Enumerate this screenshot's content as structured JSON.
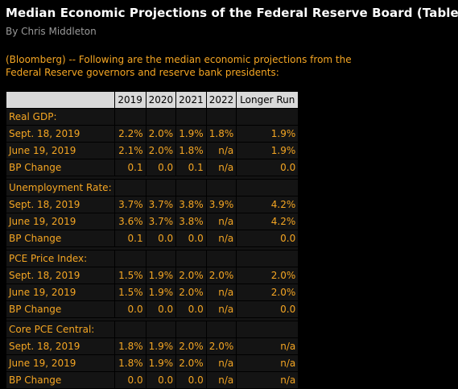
{
  "article": {
    "title": "Median Economic Projections of the Federal Reserve Board (Table)",
    "byline": "By Chris Middleton",
    "intro": "(Bloomberg) --  Following are the median economic projections from the Federal Reserve governors and reserve bank presidents:"
  },
  "table": {
    "columns": [
      "2019",
      "2020",
      "2021",
      "2022",
      "Longer Run"
    ],
    "sections": [
      {
        "label": "Real GDP:",
        "rows": [
          {
            "label": "Sept. 18, 2019",
            "values": [
              "2.2%",
              "2.0%",
              "1.9%",
              "1.8%",
              "1.9%"
            ]
          },
          {
            "label": "June 19, 2019",
            "values": [
              "2.1%",
              "2.0%",
              "1.8%",
              "n/a",
              "1.9%"
            ]
          },
          {
            "label": "BP Change",
            "values": [
              "0.1",
              "0.0",
              "0.1",
              "n/a",
              "0.0"
            ]
          }
        ]
      },
      {
        "label": "Unemployment Rate:",
        "rows": [
          {
            "label": "Sept. 18, 2019",
            "values": [
              "3.7%",
              "3.7%",
              "3.8%",
              "3.9%",
              "4.2%"
            ]
          },
          {
            "label": "June 19, 2019",
            "values": [
              "3.6%",
              "3.7%",
              "3.8%",
              "n/a",
              "4.2%"
            ]
          },
          {
            "label": "BP Change",
            "values": [
              "0.1",
              "0.0",
              "0.0",
              "n/a",
              "0.0"
            ]
          }
        ]
      },
      {
        "label": "PCE Price Index:",
        "rows": [
          {
            "label": "Sept. 18, 2019",
            "values": [
              "1.5%",
              "1.9%",
              "2.0%",
              "2.0%",
              "2.0%"
            ]
          },
          {
            "label": "June 19, 2019",
            "values": [
              "1.5%",
              "1.9%",
              "2.0%",
              "n/a",
              "2.0%"
            ]
          },
          {
            "label": "BP Change",
            "values": [
              "0.0",
              "0.0",
              "0.0",
              "n/a",
              "0.0"
            ]
          }
        ]
      },
      {
        "label": "Core PCE Central:",
        "rows": [
          {
            "label": "Sept. 18, 2019",
            "values": [
              "1.8%",
              "1.9%",
              "2.0%",
              "2.0%",
              "n/a"
            ]
          },
          {
            "label": "June 19, 2019",
            "values": [
              "1.8%",
              "1.9%",
              "2.0%",
              "n/a",
              "n/a"
            ]
          },
          {
            "label": "BP Change",
            "values": [
              "0.0",
              "0.0",
              "0.0",
              "n/a",
              "n/a"
            ]
          }
        ]
      }
    ]
  },
  "colors": {
    "background": "#000000",
    "accent": "#f5a623",
    "header_bg": "#d9d9d9",
    "cell_bg": "#141414",
    "title": "#ffffff",
    "byline": "#9a9a9a"
  }
}
